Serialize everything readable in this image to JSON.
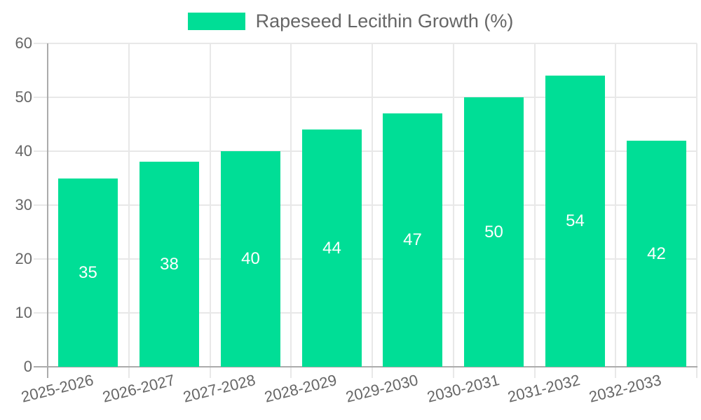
{
  "legend": {
    "label": "Rapeseed Lecithin Growth (%)"
  },
  "colors": {
    "bar": "#00DE96",
    "axis_line": "#ABABAB",
    "grid_line": "#E8E8E8",
    "text": "#666666",
    "value_label": "#FFFFFF",
    "background": "#FFFFFF"
  },
  "chart_data": {
    "type": "bar",
    "title": "Rapeseed Lecithin Growth (%)",
    "series_name": "Rapeseed Lecithin Growth (%)",
    "categories": [
      "2025-2026",
      "2026-2027",
      "2027-2028",
      "2028-2029",
      "2029-2030",
      "2030-2031",
      "2031-2032",
      "2032-2033"
    ],
    "values": [
      35,
      38,
      40,
      44,
      47,
      50,
      54,
      42
    ],
    "xlabel": "",
    "ylabel": "",
    "ylim": [
      0,
      60
    ],
    "yticks": [
      0,
      10,
      20,
      30,
      40,
      50,
      60
    ],
    "grid": true,
    "legend_position": "top",
    "value_labels_shown": true,
    "x_label_rotation_deg": -14
  }
}
